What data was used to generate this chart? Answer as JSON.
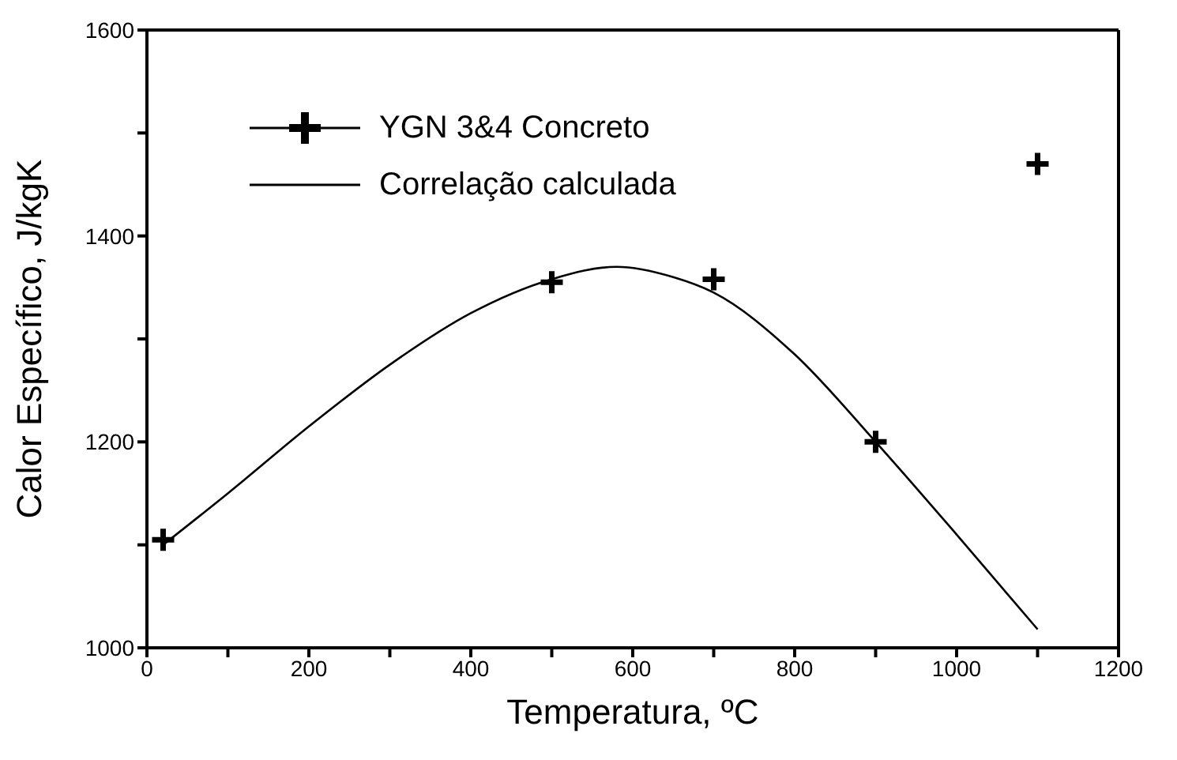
{
  "chart_data": {
    "type": "scatter",
    "xlabel": "Temperatura, ºC",
    "ylabel": "Calor Específico, J/kgK",
    "xlim": [
      0,
      1200
    ],
    "ylim": [
      1000,
      1600
    ],
    "xticks": [
      0,
      {
        "value": 100,
        "label": null
      },
      200,
      {
        "value": 300,
        "label": null
      },
      400,
      {
        "value": 500,
        "label": null
      },
      600,
      {
        "value": 700,
        "label": null
      },
      800,
      {
        "value": 900,
        "label": null
      },
      1000,
      {
        "value": 1100,
        "label": null
      },
      1200
    ],
    "yticks": [
      1000,
      {
        "value": 1100,
        "label": null
      },
      1200,
      {
        "value": 1300,
        "label": null
      },
      1400,
      {
        "value": 1500,
        "label": null
      },
      1600
    ],
    "grid": false,
    "legend": "top left",
    "series": [
      {
        "name": "YGN 3&4 Concreto",
        "marker": "cross",
        "color": "#000000",
        "x": [
          20,
          500,
          700,
          900,
          1100
        ],
        "values": [
          1105,
          1355,
          1358,
          1200,
          1470
        ]
      },
      {
        "name": "Correlação calculada",
        "type": "line",
        "marker": "none",
        "line_style": "solid",
        "color": "#000000",
        "x": [
          20,
          100,
          200,
          300,
          400,
          500,
          580,
          650,
          700,
          800,
          900,
          1000,
          1100
        ],
        "values": [
          1100,
          1150,
          1215,
          1275,
          1325,
          1358,
          1370,
          1360,
          1345,
          1285,
          1200,
          1110,
          1018
        ]
      }
    ]
  }
}
